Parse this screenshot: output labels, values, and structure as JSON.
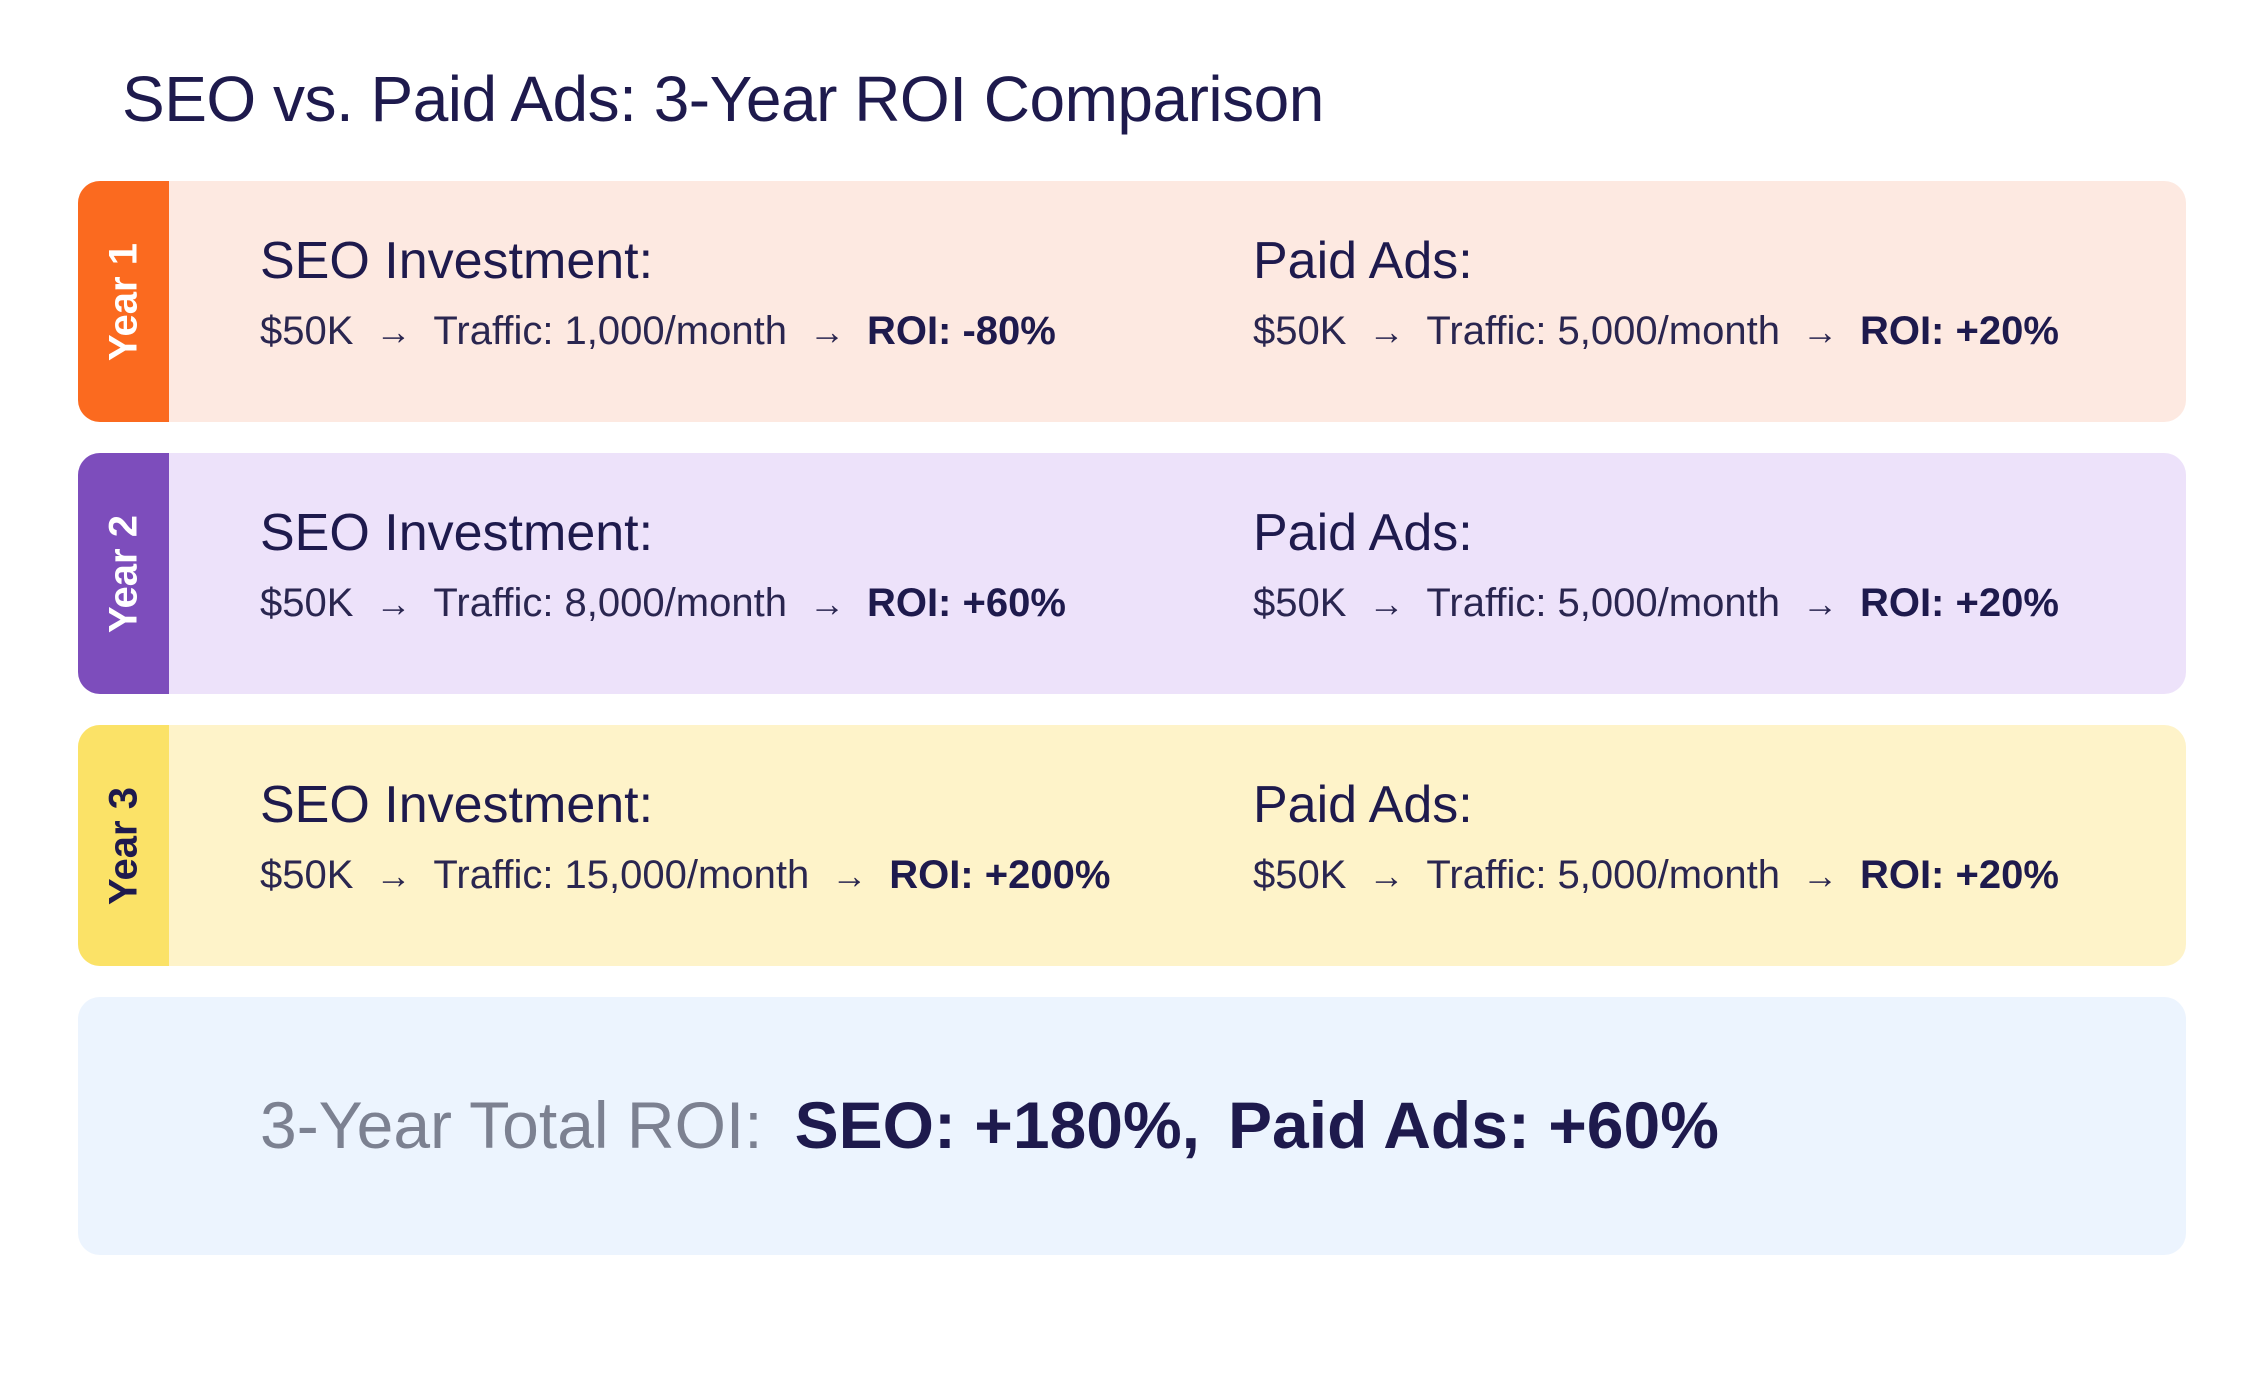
{
  "title": "SEO vs. Paid Ads: 3-Year ROI Comparison",
  "colors": {
    "year1_tab": "#fb6a1f",
    "year1_bg": "#fde9e1",
    "year2_tab": "#7d4dbc",
    "year2_bg": "#ede2fa",
    "year3_tab": "#fbe267",
    "year3_bg": "#fef3c9",
    "summary_bg": "#ecf4fe",
    "text_dark": "#1e1a4d",
    "text_muted": "#7c8191"
  },
  "years": [
    {
      "label": "Year 1",
      "seo": {
        "heading": "SEO Investment:",
        "investment": "$50K",
        "traffic": "Traffic: 1,000/month",
        "roi": "ROI: -80%"
      },
      "paid": {
        "heading": "Paid Ads:",
        "investment": "$50K",
        "traffic": "Traffic: 5,000/month",
        "roi": "ROI: +20%"
      }
    },
    {
      "label": "Year 2",
      "seo": {
        "heading": "SEO Investment:",
        "investment": "$50K",
        "traffic": "Traffic: 8,000/month",
        "roi": "ROI: +60%"
      },
      "paid": {
        "heading": "Paid Ads:",
        "investment": "$50K",
        "traffic": "Traffic: 5,000/month",
        "roi": "ROI: +20%"
      }
    },
    {
      "label": "Year 3",
      "seo": {
        "heading": "SEO Investment:",
        "investment": "$50K",
        "traffic": "Traffic: 15,000/month",
        "roi": "ROI: +200%"
      },
      "paid": {
        "heading": "Paid Ads:",
        "investment": "$50K",
        "traffic": "Traffic: 5,000/month",
        "roi": "ROI: +20%"
      }
    }
  ],
  "summary": {
    "label": "3-Year Total ROI:",
    "seo": "SEO: +180%,",
    "paid": "Paid Ads: +60%"
  }
}
